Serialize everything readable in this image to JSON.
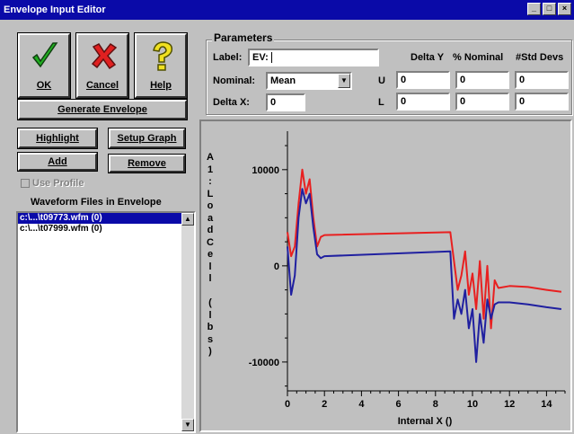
{
  "window": {
    "title": "Envelope Input Editor"
  },
  "buttons": {
    "ok": "OK",
    "cancel": "Cancel",
    "help": "Help",
    "generate": "Generate Envelope",
    "highlight": "Highlight",
    "setup_graph": "Setup Graph",
    "add": "Add",
    "remove": "Remove"
  },
  "use_profile": {
    "label": "Use Profile",
    "checked": false
  },
  "waveform_list": {
    "title": "Waveform Files in Envelope",
    "items": [
      {
        "text": "c:\\...\\t09773.wfm (0)",
        "selected": true
      },
      {
        "text": "c:\\...\\t07999.wfm (0)",
        "selected": false
      }
    ]
  },
  "parameters": {
    "title": "Parameters",
    "label_caption": "Label:",
    "label_prefix": "EV:",
    "label_value": "",
    "nominal_caption": "Nominal:",
    "nominal_value": "Mean",
    "deltax_caption": "Delta X:",
    "deltax_value": "0",
    "headers": {
      "delta_y": "Delta Y",
      "pct_nominal": "% Nominal",
      "std_devs": "#Std Devs"
    },
    "rows": [
      {
        "label": "U",
        "delta_y": "0",
        "pct_nominal": "0",
        "std_devs": "0"
      },
      {
        "label": "L",
        "delta_y": "0",
        "pct_nominal": "0",
        "std_devs": "0"
      }
    ]
  },
  "chart_data": {
    "type": "line",
    "xlabel": "Internal X ()",
    "ylabel": "A1:LoadCell (lbs)",
    "xlim": [
      0,
      15
    ],
    "ylim": [
      -13000,
      14000
    ],
    "x_ticks": [
      0,
      2,
      4,
      6,
      8,
      10,
      12,
      14
    ],
    "y_ticks": [
      10000,
      0,
      -10000
    ],
    "colors": {
      "upper": "#e82020",
      "lower": "#2020a0"
    },
    "series": [
      {
        "color": "#e82020",
        "x": [
          0,
          0.2,
          0.4,
          0.6,
          0.8,
          1.0,
          1.2,
          1.4,
          1.6,
          1.8,
          2.0,
          8.8,
          9.0,
          9.2,
          9.4,
          9.6,
          9.8,
          10.0,
          10.2,
          10.4,
          10.6,
          10.8,
          11.0,
          11.2,
          11.4,
          12.0,
          13.0,
          14.0,
          14.8
        ],
        "y": [
          3500,
          1000,
          2000,
          6500,
          10000,
          7500,
          9000,
          5000,
          2000,
          3000,
          3200,
          3500,
          500,
          -2500,
          -1000,
          1500,
          -3000,
          -800,
          -4500,
          500,
          -5500,
          0,
          -6500,
          -1500,
          -2300,
          -2100,
          -2200,
          -2500,
          -2700
        ]
      },
      {
        "color": "#2020a0",
        "x": [
          0,
          0.2,
          0.4,
          0.6,
          0.8,
          1.0,
          1.2,
          1.4,
          1.6,
          1.8,
          2.0,
          8.8,
          9.0,
          9.2,
          9.4,
          9.6,
          9.8,
          10.0,
          10.2,
          10.4,
          10.6,
          10.8,
          11.0,
          11.2,
          11.4,
          12.0,
          13.0,
          14.0,
          14.8
        ],
        "y": [
          2000,
          -3000,
          -1000,
          5000,
          8000,
          6500,
          7500,
          4000,
          1200,
          800,
          1000,
          1500,
          -5500,
          -3500,
          -5000,
          -2500,
          -6500,
          -4500,
          -10000,
          -5000,
          -8000,
          -3500,
          -5500,
          -4000,
          -3800,
          -3800,
          -4000,
          -4300,
          -4500
        ]
      }
    ]
  }
}
